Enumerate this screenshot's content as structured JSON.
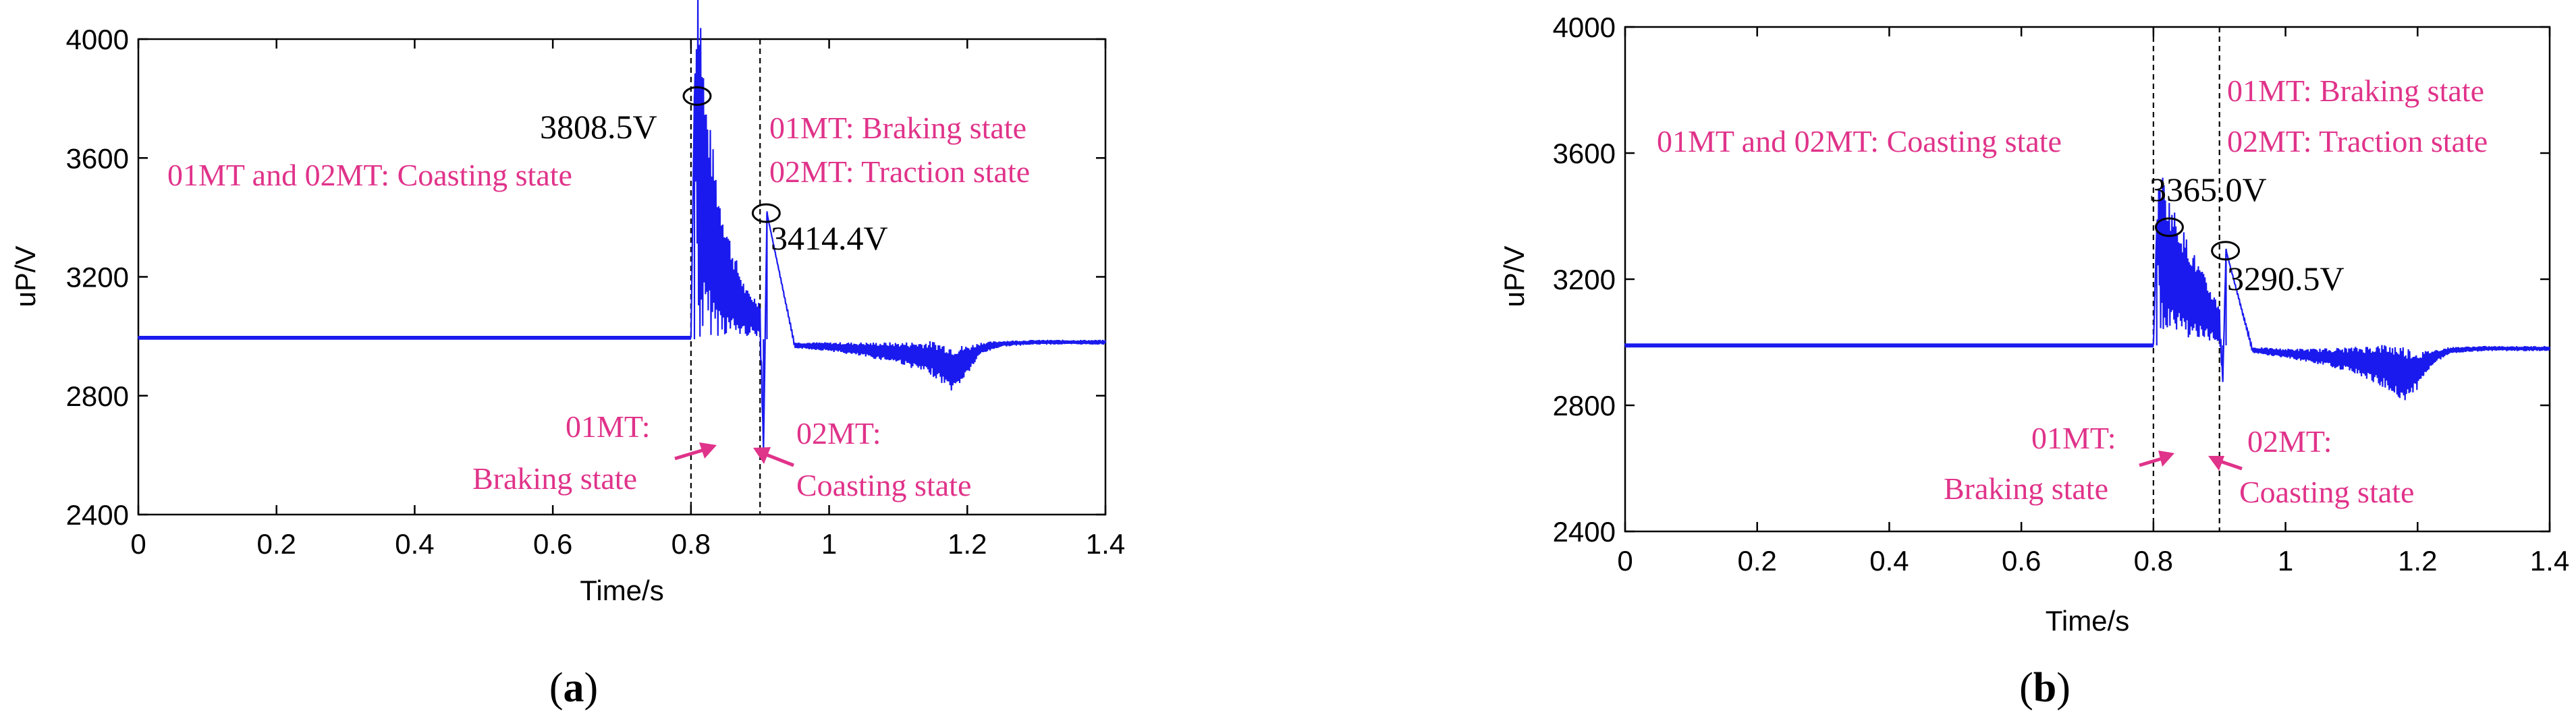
{
  "colors": {
    "signal": "#1a1aee",
    "annotation": "#e0338a",
    "axes": "#000000"
  },
  "chart_data": [
    {
      "type": "line",
      "panel": "(a)",
      "caption_letter": "a",
      "xlabel": "Time/s",
      "ylabel": "uP/V",
      "xlim": [
        0,
        1.4
      ],
      "ylim": [
        2400,
        4000
      ],
      "xticks": [
        0,
        0.2,
        0.4,
        0.6,
        0.8,
        1,
        1.2,
        1.4
      ],
      "xtick_labels": [
        "0",
        "0.2",
        "0.4",
        "0.6",
        "0.8",
        "1",
        "1.2",
        "1.4"
      ],
      "yticks": [
        2400,
        2800,
        3200,
        3600,
        4000
      ],
      "ytick_labels": [
        "2400",
        "2800",
        "3200",
        "3600",
        "4000"
      ],
      "grid": false,
      "series": [
        {
          "x": [
            0,
            0.1,
            0.2,
            0.3,
            0.4,
            0.5,
            0.6,
            0.7,
            0.8,
            0.805,
            0.81,
            0.82,
            0.84,
            0.86,
            0.88,
            0.9,
            0.905,
            0.91,
            0.95,
            1.0,
            1.05,
            1.1,
            1.15,
            1.18,
            1.2,
            1.22,
            1.25,
            1.3,
            1.4
          ],
          "y": [
            2995,
            2995,
            2995,
            2995,
            2995,
            2995,
            2995,
            2995,
            2995,
            3808.5,
            3650,
            3420,
            3250,
            3150,
            3080,
            3060,
            2620,
            3414.4,
            2970,
            2965,
            2955,
            2945,
            2925,
            2890,
            2920,
            2960,
            2975,
            2980,
            2980
          ],
          "envelope": [
            0,
            0,
            0,
            0,
            0,
            0,
            0,
            0,
            0,
            0,
            700,
            420,
            250,
            150,
            80,
            60,
            0,
            0,
            10,
            15,
            25,
            35,
            60,
            80,
            50,
            20,
            10,
            8,
            8
          ]
        }
      ],
      "vlines": [
        0.8,
        0.9
      ],
      "peak_labels": [
        {
          "text": "3808.5V",
          "x": 0.805,
          "y": 3808.5
        },
        {
          "text": "3414.4V",
          "x": 0.905,
          "y": 3414.4
        }
      ],
      "annotations": [
        "01MT and 02MT: Coasting state",
        "01MT: Braking state",
        "02MT: Traction state",
        "01MT:",
        "Braking state",
        "02MT:",
        "Coasting state"
      ]
    },
    {
      "type": "line",
      "panel": "(b)",
      "caption_letter": "b",
      "xlabel": "Time/s",
      "ylabel": "uP/V",
      "xlim": [
        0,
        1.4
      ],
      "ylim": [
        2400,
        4000
      ],
      "xticks": [
        0,
        0.2,
        0.4,
        0.6,
        0.8,
        1,
        1.2,
        1.4
      ],
      "xtick_labels": [
        "0",
        "0.2",
        "0.4",
        "0.6",
        "0.8",
        "1",
        "1.2",
        "1.4"
      ],
      "yticks": [
        2400,
        2800,
        3200,
        3600,
        4000
      ],
      "ytick_labels": [
        "2400",
        "2800",
        "3200",
        "3600",
        "4000"
      ],
      "grid": false,
      "series": [
        {
          "x": [
            0,
            0.1,
            0.2,
            0.3,
            0.4,
            0.5,
            0.6,
            0.7,
            0.8,
            0.805,
            0.81,
            0.82,
            0.84,
            0.86,
            0.88,
            0.9,
            0.905,
            0.91,
            0.95,
            1.0,
            1.05,
            1.1,
            1.15,
            1.18,
            1.2,
            1.22,
            1.25,
            1.3,
            1.4
          ],
          "y": [
            2990,
            2990,
            2990,
            2990,
            2990,
            2990,
            2990,
            2990,
            2990,
            3365.0,
            3300,
            3250,
            3200,
            3150,
            3100,
            3060,
            2880,
            3290.5,
            2975,
            2965,
            2955,
            2945,
            2925,
            2900,
            2910,
            2950,
            2975,
            2980,
            2980
          ],
          "envelope": [
            0,
            0,
            0,
            0,
            0,
            0,
            0,
            0,
            0,
            0,
            280,
            230,
            180,
            140,
            100,
            60,
            0,
            0,
            10,
            15,
            25,
            40,
            70,
            90,
            60,
            25,
            10,
            8,
            8
          ]
        }
      ],
      "vlines": [
        0.8,
        0.9
      ],
      "peak_labels": [
        {
          "text": "3365.0V",
          "x": 0.82,
          "y": 3365.0
        },
        {
          "text": "3290.5V",
          "x": 0.905,
          "y": 3290.5
        }
      ],
      "annotations": [
        "01MT and 02MT: Coasting state",
        "01MT: Braking state",
        "02MT: Traction state",
        "01MT:",
        "Braking state",
        "02MT:",
        "Coasting state"
      ]
    }
  ]
}
